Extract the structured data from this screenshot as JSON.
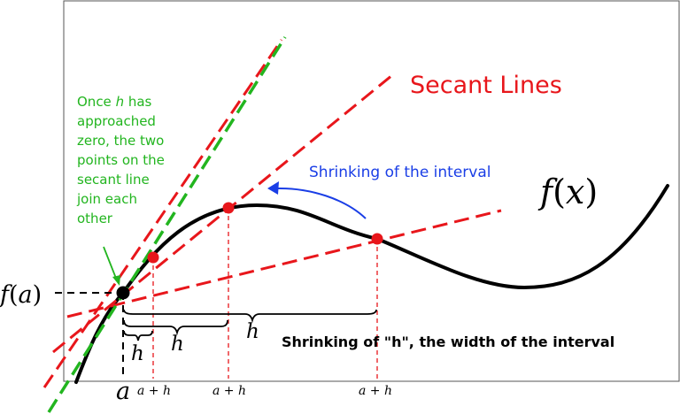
{
  "colors": {
    "curve": "#000000",
    "secant": "#e8161b",
    "tangent": "#22b51f",
    "arrow": "#1a3ee6",
    "annotation_green": "#22b51f",
    "text_black": "#000000"
  },
  "labels": {
    "secant_lines": "Secant Lines",
    "fx_f": "f",
    "fx_open": "(",
    "fx_x": "x",
    "fx_close": ")",
    "fa_f": "f",
    "fa_open": "(",
    "fa_a": "a",
    "fa_close": ")",
    "shrinking_interval": "Shrinking of the interval",
    "shrinking_h": "Shrinking of \"h\", the width of the interval",
    "once_h": {
      "line1_pre": "Once ",
      "line1_h": "h",
      "line1_post": " has",
      "line2": "approached",
      "line3": "zero, the two",
      "line4": "points on the",
      "line5": "secant line",
      "line6": "join each",
      "line7": "other"
    },
    "brace_h_small": "h",
    "brace_h_medium": "h",
    "brace_h_large": "h",
    "axis_a": "a",
    "tick_1": "a + h",
    "tick_2": "a + h",
    "tick_3": "a + h"
  }
}
